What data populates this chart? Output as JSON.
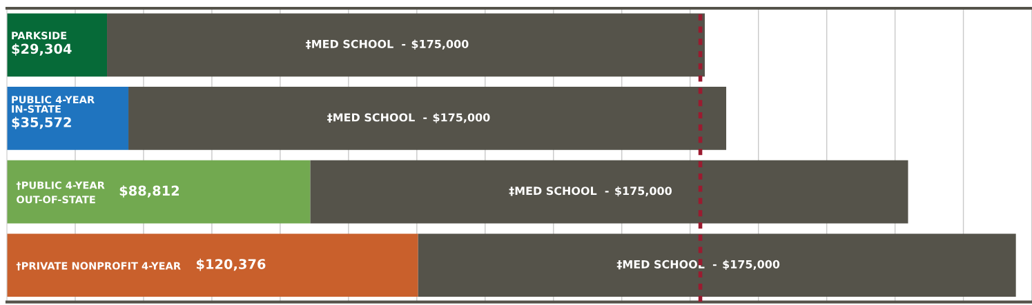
{
  "chart_data": {
    "type": "bar",
    "orientation": "horizontal",
    "stacked": true,
    "categories": [
      "PARKSIDE",
      "PUBLIC 4-YEAR\nIN-STATE",
      "†PUBLIC 4-YEAR\nOUT-OF-STATE",
      "†PRIVATE NONPROFIT 4-YEAR"
    ],
    "series": [
      {
        "colors": [
          "#066a38",
          "#1f74bf",
          "#72a950",
          "#c9602c"
        ],
        "values": [
          29304,
          35572,
          88812,
          120376
        ],
        "value_labels": [
          "$29,304",
          "$35,572",
          "$88,812",
          "$120,376"
        ]
      },
      {
        "name": "‡MED SCHOOL  -",
        "color": "#55534a",
        "values": [
          175000,
          175000,
          175000,
          175000
        ],
        "value_labels": [
          "$175,000",
          "$175,000",
          "$175,000",
          "$175,000"
        ]
      }
    ],
    "xlim": [
      0,
      300000
    ],
    "xticks": [
      {
        "value": 20000,
        "label": null
      },
      {
        "value": 40000,
        "label": null
      },
      {
        "value": 60000,
        "label": null
      },
      {
        "value": 80000,
        "label": null
      },
      {
        "value": 100000,
        "label": null
      },
      {
        "value": 120000,
        "label": null
      },
      {
        "value": 140000,
        "label": null
      },
      {
        "value": 160000,
        "label": null
      },
      {
        "value": 180000,
        "label": null
      },
      {
        "value": 200000,
        "label": null
      },
      {
        "value": 220000,
        "label": null
      },
      {
        "value": 240000,
        "label": null
      },
      {
        "value": 260000,
        "label": null
      },
      {
        "value": 280000,
        "label": null
      }
    ],
    "grid": "x",
    "ref_lines": [
      {
        "axis": "x",
        "value": 203000,
        "label": null,
        "color": "#9b1b30",
        "line_style": "dashed"
      }
    ]
  }
}
